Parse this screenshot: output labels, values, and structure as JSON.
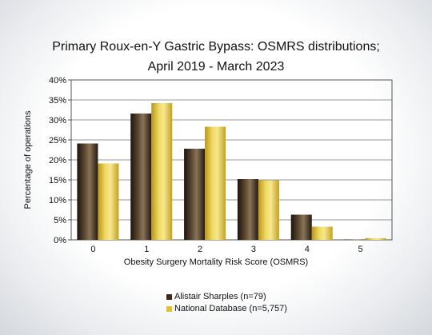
{
  "chart_data": {
    "type": "bar",
    "title": "Primary Roux-en-Y Gastric Bypass: OSMRS distributions;",
    "subtitle": "April 2019 - March 2023",
    "xlabel": "Obesity Surgery Mortality Risk Score (OSMRS)",
    "ylabel": "Percentage of operations",
    "categories": [
      "0",
      "1",
      "2",
      "3",
      "4",
      "5"
    ],
    "yticks": [
      "0%",
      "5%",
      "10%",
      "15%",
      "20%",
      "25%",
      "30%",
      "35%",
      "40%"
    ],
    "ylim": [
      0,
      40
    ],
    "grid": true,
    "legend_position": "bottom",
    "series": [
      {
        "name": "Alistair Sharples (n=79)",
        "color": "#3a2a1a",
        "values": [
          24.1,
          31.6,
          22.8,
          15.2,
          6.3,
          0.1
        ]
      },
      {
        "name": "National Database (n=5,757)",
        "color": "#e2c030",
        "values": [
          19.1,
          34.2,
          28.3,
          14.9,
          3.3,
          0.4
        ]
      }
    ]
  }
}
